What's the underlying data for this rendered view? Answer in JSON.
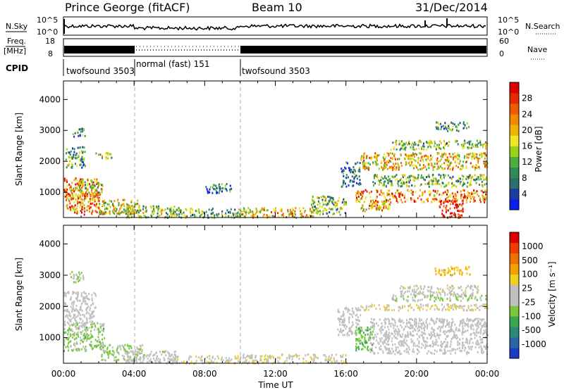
{
  "header": {
    "station": "Prince George (fitACF)",
    "beam": "Beam 10",
    "date": "31/Dec/2014"
  },
  "sky_panel": {
    "left_label": "N.Sky",
    "right_label": "N.Search",
    "left_ticks": [
      "10^5",
      "10^0"
    ],
    "right_ticks": [
      "10^5",
      "10^0"
    ]
  },
  "freq_panel": {
    "label_line1": "Freq.",
    "label_line2": "[MHz]",
    "left_ticks": [
      "18",
      "8"
    ],
    "right_ticks": [
      "60",
      "0"
    ],
    "right_label": "Nave"
  },
  "cpid": {
    "label": "CPID",
    "segments": [
      {
        "name": "twofsound 3503",
        "start_hour": 0,
        "end_hour": 4
      },
      {
        "name": "normal (fast) 151",
        "start_hour": 4,
        "end_hour": 10
      },
      {
        "name": "twofsound 3503",
        "start_hour": 10,
        "end_hour": 24
      }
    ]
  },
  "power_panel": {
    "ylabel": "Slant Range [km]",
    "yticks": [
      "4000",
      "3000",
      "2000",
      "1000"
    ],
    "colorbar_label": "Power [dB]",
    "colorbar_ticks": [
      "28",
      "24",
      "20",
      "16",
      "12",
      "8",
      "4"
    ],
    "colors": [
      "#0a1ef0",
      "#1e3ca0",
      "#2f6e70",
      "#2e8a56",
      "#4cae3c",
      "#9ad21a",
      "#f0e628",
      "#f0b400",
      "#f08a00",
      "#ee5a00",
      "#e82800",
      "#e00000"
    ]
  },
  "velocity_panel": {
    "ylabel": "Slant Range [km]",
    "yticks": [
      "4000",
      "3000",
      "2000",
      "1000"
    ],
    "colorbar_label": "Velocity [m s⁻¹]",
    "colorbar_ticks": [
      "1000",
      "500",
      "100",
      "25",
      "-25",
      "-100",
      "-500",
      "-1000"
    ],
    "colors": [
      "#1a3cc8",
      "#2a64a8",
      "#2e8878",
      "#3aa850",
      "#7ac83a",
      "#c0c0c0",
      "#c0c0c0",
      "#f0d020",
      "#f0a000",
      "#f07000",
      "#f03c00",
      "#e00000"
    ]
  },
  "time_axis": {
    "xlabel": "Time UT",
    "ticks": [
      "00:00",
      "04:00",
      "08:00",
      "12:00",
      "16:00",
      "20:00",
      "00:00"
    ]
  },
  "chart_data": [
    {
      "type": "heatmap",
      "name": "Power",
      "title": "Prince George (fitACF)  Beam 10  31/Dec/2014",
      "xlabel": "Time UT",
      "ylabel": "Slant Range [km]",
      "xlim_hours": [
        0,
        24
      ],
      "ylim": [
        180,
        4600
      ],
      "zlabel": "Power [dB]",
      "zlim": [
        0,
        30
      ],
      "grid": false,
      "regions": [
        {
          "t0": 0.1,
          "t1": 2.2,
          "r0": 300,
          "r1": 1000,
          "value": 22
        },
        {
          "t0": 0.0,
          "t1": 2.0,
          "r0": 800,
          "r1": 1500,
          "value": 22
        },
        {
          "t0": 0.4,
          "t1": 2.2,
          "r0": 1000,
          "r1": 1400,
          "value": 14
        },
        {
          "t0": 0.1,
          "t1": 1.2,
          "r0": 1800,
          "r1": 2500,
          "value": 10
        },
        {
          "t0": 0.5,
          "t1": 1.2,
          "r0": 2800,
          "r1": 3100,
          "value": 10
        },
        {
          "t0": 1.8,
          "t1": 2.7,
          "r0": 2100,
          "r1": 2300,
          "value": 14
        },
        {
          "t0": 2.0,
          "t1": 4.2,
          "r0": 320,
          "r1": 800,
          "value": 16
        },
        {
          "t0": 3.5,
          "t1": 6.5,
          "r0": 200,
          "r1": 600,
          "value": 14
        },
        {
          "t0": 6.0,
          "t1": 10.0,
          "r0": 200,
          "r1": 500,
          "value": 12
        },
        {
          "t0": 8.0,
          "t1": 9.5,
          "r0": 1000,
          "r1": 1300,
          "value": 6
        },
        {
          "t0": 10.0,
          "t1": 14.3,
          "r0": 200,
          "r1": 520,
          "value": 18
        },
        {
          "t0": 14.0,
          "t1": 16.0,
          "r0": 300,
          "r1": 900,
          "value": 12
        },
        {
          "t0": 15.7,
          "t1": 16.8,
          "r0": 1200,
          "r1": 2000,
          "value": 6
        },
        {
          "t0": 16.5,
          "t1": 24.0,
          "r0": 700,
          "r1": 1100,
          "value": 22
        },
        {
          "t0": 17.5,
          "t1": 24.0,
          "r0": 1200,
          "r1": 1600,
          "value": 12
        },
        {
          "t0": 16.6,
          "t1": 18.5,
          "r0": 400,
          "r1": 700,
          "value": 18
        },
        {
          "t0": 21.2,
          "t1": 22.6,
          "r0": 200,
          "r1": 750,
          "value": 28
        },
        {
          "t0": 16.8,
          "t1": 24.0,
          "r0": 1750,
          "r1": 2300,
          "value": 18
        },
        {
          "t0": 18.5,
          "t1": 24.0,
          "r0": 2400,
          "r1": 2700,
          "value": 12
        },
        {
          "t0": 21.0,
          "t1": 23.0,
          "r0": 3000,
          "r1": 3300,
          "value": 8
        }
      ]
    },
    {
      "type": "heatmap",
      "name": "Velocity",
      "xlabel": "Time UT",
      "ylabel": "Slant Range [km]",
      "xlim_hours": [
        0,
        24
      ],
      "ylim": [
        180,
        4600
      ],
      "zlabel": "Velocity [m s⁻¹]",
      "zlim": [
        -1000,
        1000
      ],
      "grid": false,
      "regions": [
        {
          "t0": 0.0,
          "t1": 2.3,
          "r0": 600,
          "r1": 1500,
          "value": -200
        },
        {
          "t0": 0.0,
          "t1": 1.8,
          "r0": 1400,
          "r1": 2500,
          "value": 0
        },
        {
          "t0": 0.3,
          "t1": 1.2,
          "r0": 2800,
          "r1": 3150,
          "value": -200
        },
        {
          "t0": 2.0,
          "t1": 4.5,
          "r0": 300,
          "r1": 800,
          "value": -150
        },
        {
          "t0": 3.5,
          "t1": 6.5,
          "r0": 200,
          "r1": 600,
          "value": -50
        },
        {
          "t0": 6.0,
          "t1": 10.0,
          "r0": 200,
          "r1": 450,
          "value": 80
        },
        {
          "t0": 10.0,
          "t1": 16.0,
          "r0": 200,
          "r1": 500,
          "value": 80
        },
        {
          "t0": 15.5,
          "t1": 16.8,
          "r0": 1100,
          "r1": 2000,
          "value": 0
        },
        {
          "t0": 16.5,
          "t1": 17.5,
          "r0": 600,
          "r1": 1400,
          "value": -300
        },
        {
          "t0": 17.3,
          "t1": 24.0,
          "r0": 500,
          "r1": 1650,
          "value": 0
        },
        {
          "t0": 16.8,
          "t1": 24.0,
          "r0": 1900,
          "r1": 2100,
          "value": 150
        },
        {
          "t0": 18.5,
          "t1": 24.0,
          "r0": 2200,
          "r1": 2400,
          "value": -150
        },
        {
          "t0": 19.0,
          "t1": 23.5,
          "r0": 2400,
          "r1": 2700,
          "value": 50
        },
        {
          "t0": 21.0,
          "t1": 23.0,
          "r0": 3000,
          "r1": 3300,
          "value": 300
        }
      ]
    }
  ]
}
